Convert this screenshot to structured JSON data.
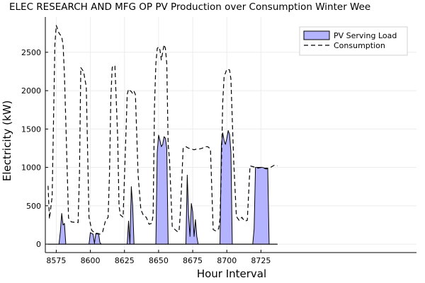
{
  "chart_data": {
    "type": "area",
    "title": "ELEC RESEARCH AND MFG OP PV Production over Consumption Winter Wee",
    "xlabel": "Hour Interval",
    "ylabel": "Electricity (kW)",
    "xlim": [
      8567,
      8839
    ],
    "ylim": [
      -110,
      2960
    ],
    "xticks": [
      8575,
      8600,
      8625,
      8650,
      8675,
      8700,
      8725
    ],
    "yticks": [
      0,
      500,
      1000,
      1500,
      2000,
      2500
    ],
    "grid": true,
    "legend": "top-right",
    "series": [
      {
        "name": "PV Serving Load",
        "kind": "area",
        "color": "#b3b3ff",
        "edge": "#000000",
        "x": [
          8569,
          8571,
          8573,
          8575,
          8577,
          8578,
          8579,
          8580,
          8581,
          8582,
          8584,
          8586,
          8588,
          8590,
          8592,
          8594,
          8596,
          8598,
          8599,
          8600,
          8601,
          8602,
          8603,
          8604,
          8605,
          8606,
          8607,
          8608,
          8609,
          8611,
          8613,
          8615,
          8617,
          8619,
          8621,
          8623,
          8625,
          8626,
          8627,
          8628,
          8629,
          8630,
          8631,
          8632,
          8633,
          8634,
          8636,
          8638,
          8640,
          8642,
          8644,
          8646,
          8647,
          8648,
          8649,
          8650,
          8651,
          8652,
          8653,
          8654,
          8655,
          8656,
          8657,
          8658,
          8660,
          8662,
          8664,
          8666,
          8668,
          8670,
          8671,
          8672,
          8673,
          8674,
          8675,
          8676,
          8677,
          8678,
          8679,
          8680,
          8681,
          8682,
          8684,
          8686,
          8688,
          8690,
          8692,
          8694,
          8695,
          8696,
          8697,
          8698,
          8699,
          8700,
          8701,
          8702,
          8703,
          8704,
          8705,
          8706,
          8708,
          8710,
          8712,
          8714,
          8716,
          8718,
          8719,
          8720,
          8721,
          8722,
          8724,
          8726,
          8728,
          8729,
          8730,
          8731,
          8733,
          8735,
          8737
        ],
        "values": [
          0,
          0,
          0,
          0,
          0,
          160,
          400,
          250,
          270,
          0,
          0,
          0,
          0,
          0,
          0,
          0,
          0,
          0,
          0,
          150,
          140,
          130,
          10,
          140,
          130,
          140,
          20,
          0,
          0,
          0,
          0,
          0,
          0,
          0,
          0,
          0,
          0,
          0,
          0,
          300,
          0,
          750,
          500,
          0,
          0,
          0,
          0,
          0,
          0,
          0,
          0,
          0,
          0,
          0,
          1200,
          1420,
          1350,
          1270,
          1300,
          1400,
          1380,
          1250,
          0,
          0,
          0,
          0,
          0,
          0,
          0,
          0,
          900,
          380,
          100,
          530,
          420,
          100,
          320,
          100,
          0,
          0,
          0,
          0,
          0,
          0,
          0,
          0,
          0,
          0,
          0,
          1300,
          1450,
          1350,
          1300,
          1380,
          1480,
          1430,
          1200,
          0,
          0,
          0,
          0,
          0,
          0,
          0,
          0,
          0,
          0,
          200,
          1000,
          1000,
          1000,
          1000,
          990,
          990,
          990,
          0,
          0,
          0,
          0
        ]
      },
      {
        "name": "Consumption",
        "kind": "line",
        "dash": "dashed",
        "color": "#000000",
        "x": [
          8569,
          8570,
          8572,
          8574,
          8575,
          8577,
          8579,
          8580,
          8581,
          8582,
          8584,
          8586,
          8588,
          8590,
          8591,
          8592,
          8593,
          8595,
          8597,
          8599,
          8601,
          8603,
          8605,
          8607,
          8609,
          8611,
          8613,
          8614,
          8615,
          8616,
          8617,
          8618,
          8620,
          8621,
          8622,
          8624,
          8626,
          8627,
          8628,
          8629,
          8630,
          8631,
          8632,
          8633,
          8635,
          8637,
          8639,
          8641,
          8643,
          8645,
          8646,
          8647,
          8648,
          8649,
          8650,
          8651,
          8652,
          8653,
          8654,
          8655,
          8656,
          8657,
          8658,
          8660,
          8662,
          8664,
          8665,
          8666,
          8668,
          8670,
          8672,
          8674,
          8676,
          8678,
          8680,
          8682,
          8684,
          8686,
          8688,
          8690,
          8692,
          8694,
          8695,
          8696,
          8697,
          8698,
          8700,
          8702,
          8703,
          8705,
          8707,
          8709,
          8711,
          8713,
          8715,
          8717,
          8719,
          8721,
          8723,
          8725,
          8727,
          8729,
          8731,
          8733,
          8735,
          8737
        ],
        "values": [
          760,
          330,
          620,
          2600,
          2850,
          2750,
          2700,
          2600,
          2200,
          1600,
          340,
          290,
          285,
          285,
          280,
          900,
          2300,
          2250,
          2050,
          350,
          180,
          150,
          140,
          130,
          160,
          300,
          350,
          900,
          1900,
          2300,
          2330,
          2320,
          1400,
          500,
          380,
          350,
          1400,
          1950,
          2020,
          2000,
          1990,
          1960,
          1990,
          1950,
          900,
          450,
          370,
          350,
          260,
          270,
          380,
          1800,
          2350,
          2550,
          2570,
          2530,
          2400,
          2500,
          2600,
          2550,
          2350,
          1300,
          1100,
          230,
          190,
          160,
          170,
          420,
          1250,
          1270,
          1250,
          1240,
          1230,
          1240,
          1240,
          1250,
          1270,
          1270,
          1240,
          190,
          170,
          200,
          330,
          1000,
          1850,
          2180,
          2280,
          2270,
          2150,
          1100,
          360,
          310,
          350,
          300,
          310,
          1020,
          1010,
          1000,
          990,
          1000,
          990,
          980,
          990,
          1010,
          1030,
          1020
        ]
      }
    ]
  }
}
